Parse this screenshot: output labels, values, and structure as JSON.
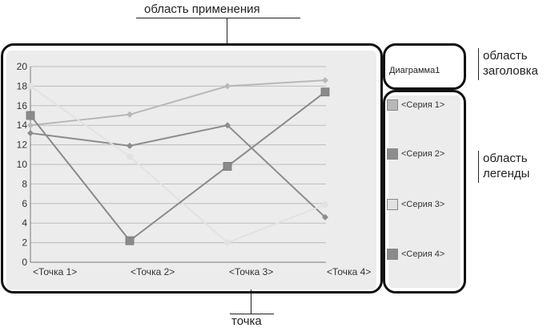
{
  "callouts": {
    "plot_area": "область применения",
    "title_area": "область заголовка",
    "legend_area": "область легенды",
    "point": "точка"
  },
  "chart_data": {
    "type": "line",
    "title": "Диаграмма1",
    "categories": [
      "<Точка 1>",
      "<Точка 2>",
      "<Точка 3>",
      "<Точка 4>"
    ],
    "ylim": [
      0,
      20
    ],
    "yticks": [
      0,
      2,
      4,
      6,
      8,
      10,
      12,
      14,
      16,
      18,
      20
    ],
    "grid": true,
    "legend_placement": "right",
    "series": [
      {
        "name": "<Серия 1>",
        "values": [
          14,
          15.1,
          18,
          18.6
        ],
        "color": "#b8b8b8"
      },
      {
        "name": "<Серия 2>",
        "values": [
          13.2,
          11.9,
          14,
          4.6
        ],
        "color": "#8c8c8c"
      },
      {
        "name": "<Серия 3>",
        "values": [
          18,
          10.8,
          2,
          5.9
        ],
        "color": "#e2e2e2"
      },
      {
        "name": "<Серия 4>",
        "values": [
          15,
          2.2,
          9.8,
          17.4
        ],
        "color": "#8a8a8a"
      }
    ]
  }
}
